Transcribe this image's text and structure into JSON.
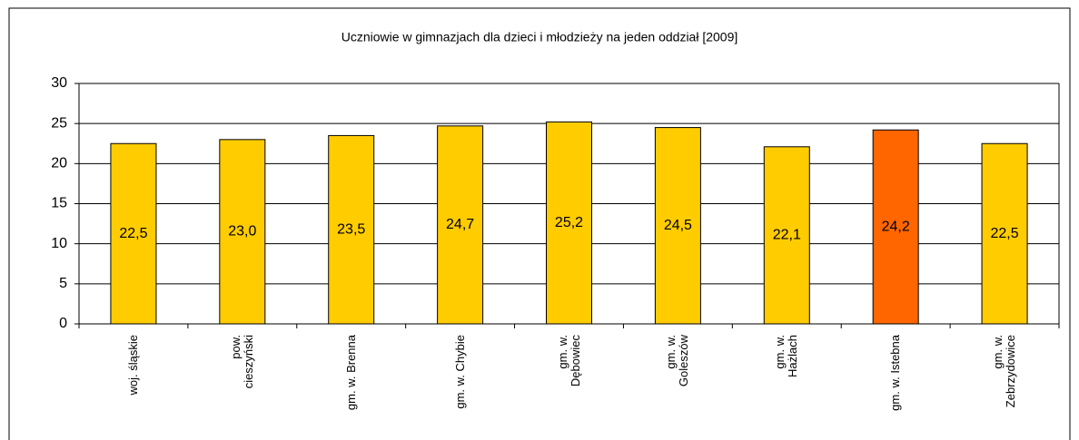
{
  "chart_data": {
    "type": "bar",
    "title": "Uczniowie w gimnazjach dla dzieci i młodzieży na jeden oddział [2009]",
    "categories": [
      "woj. śląskie",
      "pow.\ncieszyński",
      "gm. w. Brenna",
      "gm. w. Chybie",
      "gm. w.\nDębowiec",
      "gm. w.\nGoleszów",
      "gm. w.\nHażlach",
      "gm. w. Istebna",
      "gm. w.\nZebrzydowice"
    ],
    "values": [
      22.5,
      23.0,
      23.5,
      24.7,
      25.2,
      24.5,
      22.1,
      24.2,
      22.5
    ],
    "value_labels": [
      "22,5",
      "23,0",
      "23,5",
      "24,7",
      "25,2",
      "24,5",
      "22,1",
      "24,2",
      "22,5"
    ],
    "colors": [
      "#ffcc00",
      "#ffcc00",
      "#ffcc00",
      "#ffcc00",
      "#ffcc00",
      "#ffcc00",
      "#ffcc00",
      "#ff6600",
      "#ffcc00"
    ],
    "ylim": [
      0,
      30
    ],
    "yticks": [
      0,
      5,
      10,
      15,
      20,
      25,
      30
    ],
    "grid": true
  }
}
